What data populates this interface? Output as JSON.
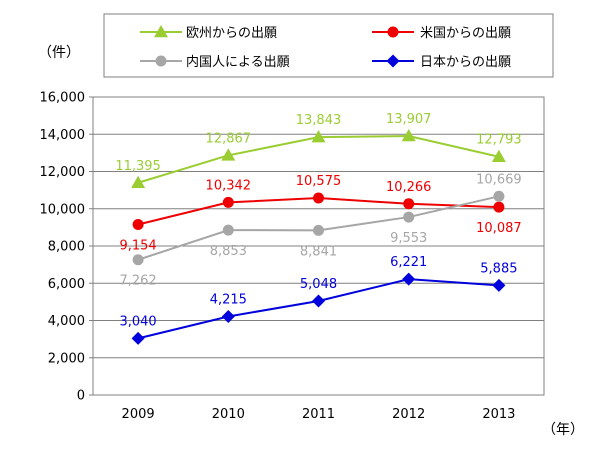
{
  "chart_data": {
    "type": "line",
    "y_unit": "（件）",
    "x_unit": "（年）",
    "categories": [
      "2009",
      "2010",
      "2011",
      "2012",
      "2013"
    ],
    "ylim": [
      0,
      16000
    ],
    "y_ticks": [
      "0",
      "2,000",
      "4,000",
      "6,000",
      "8,000",
      "10,000",
      "12,000",
      "14,000",
      "16,000"
    ],
    "y_tick_values": [
      0,
      2000,
      4000,
      6000,
      8000,
      10000,
      12000,
      14000,
      16000
    ],
    "grid": true,
    "legend_position": "top",
    "series": [
      {
        "name": "欧州からの出願",
        "color": "#9acd32",
        "marker": "triangle",
        "values": [
          11395,
          12867,
          13843,
          13907,
          12793
        ],
        "labels": [
          "11,395",
          "12,867",
          "13,843",
          "13,907",
          "12,793"
        ],
        "label_side": "above"
      },
      {
        "name": "米国からの出願",
        "color": "#ee0000",
        "marker": "circle",
        "values": [
          9154,
          10342,
          10575,
          10266,
          10087
        ],
        "labels": [
          "9,154",
          "10,342",
          "10,575",
          "10,266",
          "10,087"
        ],
        "label_side": [
          "below",
          "above",
          "above",
          "above",
          "below"
        ]
      },
      {
        "name": "内国人による出願",
        "color": "#a6a6a6",
        "marker": "circle",
        "values": [
          7262,
          8853,
          8841,
          9553,
          10669
        ],
        "labels": [
          "7,262",
          "8,853",
          "8,841",
          "9,553",
          "10,669"
        ],
        "label_side": [
          "below",
          "below",
          "below",
          "below",
          "above"
        ]
      },
      {
        "name": "日本からの出願",
        "color": "#0000dd",
        "marker": "diamond",
        "values": [
          3040,
          4215,
          5048,
          6221,
          5885
        ],
        "labels": [
          "3,040",
          "4,215",
          "5,048",
          "6,221",
          "5,885"
        ],
        "label_side": "above"
      }
    ]
  }
}
